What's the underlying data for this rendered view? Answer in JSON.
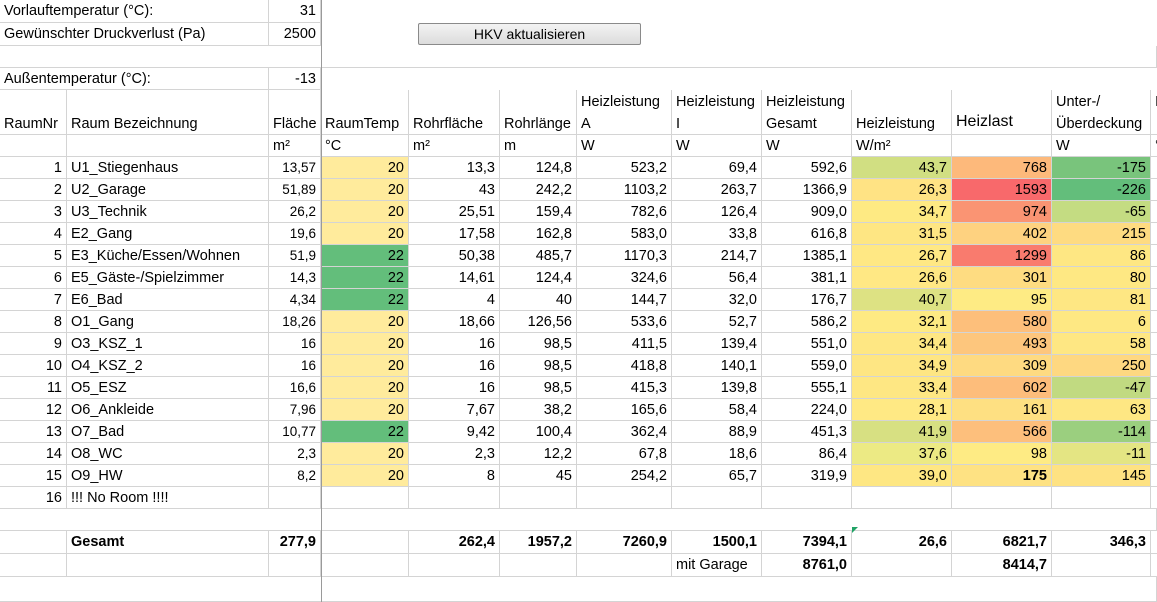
{
  "params": {
    "vorlauf_label": "Vorlauftemperatur (°C):",
    "vorlauf_value": "31",
    "druck_label": "Gewünschter Druckverlust (Pa)",
    "druck_value": "2500",
    "aussen_label": "Außentemperatur (°C):",
    "aussen_value": "-13"
  },
  "button": {
    "label": "HKV aktualisieren"
  },
  "headers": {
    "line1": [
      "",
      "",
      "",
      "",
      "",
      "",
      "Heizleistung",
      "Heizleistung",
      "Heizleistung",
      "",
      "",
      "Unter-/",
      "I"
    ],
    "line2": [
      "RaumNr",
      "Raum Bezeichnung",
      "Fläche",
      "RaumTemp",
      "Rohrfläche",
      "Rohrlänge",
      "A",
      "I",
      "Gesamt",
      "Heizleistung",
      "Heizlast",
      "Überdeckung",
      ""
    ],
    "units": [
      "",
      "",
      "m²",
      "°C",
      "m²",
      "m",
      "W",
      "W",
      "W",
      "W/m²",
      "",
      "W",
      "°"
    ]
  },
  "rows": [
    [
      "1",
      "U1_Stiegenhaus",
      "13,57",
      "20",
      "13,3",
      "124,8",
      "523,2",
      "69,4",
      "592,6",
      "43,7",
      "768",
      "-175"
    ],
    [
      "2",
      "U2_Garage",
      "51,89",
      "20",
      "43",
      "242,2",
      "1103,2",
      "263,7",
      "1366,9",
      "26,3",
      "1593",
      "-226"
    ],
    [
      "3",
      "U3_Technik",
      "26,2",
      "20",
      "25,51",
      "159,4",
      "782,6",
      "126,4",
      "909,0",
      "34,7",
      "974",
      "-65"
    ],
    [
      "4",
      "E2_Gang",
      "19,6",
      "20",
      "17,58",
      "162,8",
      "583,0",
      "33,8",
      "616,8",
      "31,5",
      "402",
      "215"
    ],
    [
      "5",
      "E3_Küche/Essen/Wohnen",
      "51,9",
      "22",
      "50,38",
      "485,7",
      "1170,3",
      "214,7",
      "1385,1",
      "26,7",
      "1299",
      "86"
    ],
    [
      "6",
      "E5_Gäste-/Spielzimmer",
      "14,3",
      "22",
      "14,61",
      "124,4",
      "324,6",
      "56,4",
      "381,1",
      "26,6",
      "301",
      "80"
    ],
    [
      "7",
      "E6_Bad",
      "4,34",
      "22",
      "4",
      "40",
      "144,7",
      "32,0",
      "176,7",
      "40,7",
      "95",
      "81"
    ],
    [
      "8",
      "O1_Gang",
      "18,26",
      "20",
      "18,66",
      "126,56",
      "533,6",
      "52,7",
      "586,2",
      "32,1",
      "580",
      "6"
    ],
    [
      "9",
      "O3_KSZ_1",
      "16",
      "20",
      "16",
      "98,5",
      "411,5",
      "139,4",
      "551,0",
      "34,4",
      "493",
      "58"
    ],
    [
      "10",
      "O4_KSZ_2",
      "16",
      "20",
      "16",
      "98,5",
      "418,8",
      "140,1",
      "559,0",
      "34,9",
      "309",
      "250"
    ],
    [
      "11",
      "O5_ESZ",
      "16,6",
      "20",
      "16",
      "98,5",
      "415,3",
      "139,8",
      "555,1",
      "33,4",
      "602",
      "-47"
    ],
    [
      "12",
      "O6_Ankleide",
      "7,96",
      "20",
      "7,67",
      "38,2",
      "165,6",
      "58,4",
      "224,0",
      "28,1",
      "161",
      "63"
    ],
    [
      "13",
      "O7_Bad",
      "10,77",
      "22",
      "9,42",
      "100,4",
      "362,4",
      "88,9",
      "451,3",
      "41,9",
      "566",
      "-114"
    ],
    [
      "14",
      "O8_WC",
      "2,3",
      "20",
      "2,3",
      "12,2",
      "67,8",
      "18,6",
      "86,4",
      "37,6",
      "98",
      "-11"
    ],
    [
      "15",
      "O9_HW",
      "8,2",
      "20",
      "8",
      "45",
      "254,2",
      "65,7",
      "319,9",
      "39,0",
      "175",
      "145"
    ],
    [
      "16",
      "!!! No Room !!!!",
      "",
      "",
      "",
      "",
      "",
      "",
      "",
      "",
      "",
      ""
    ]
  ],
  "totals": [
    "",
    "Gesamt",
    "277,9",
    "",
    "262,4",
    "1957,2",
    "7260,9",
    "1500,1",
    "7394,1",
    "26,6",
    "6821,7",
    "346,3"
  ],
  "garage": {
    "label": "mit Garage",
    "gesamt": "8761,0",
    "heizlast": "8414,7"
  },
  "colors": {
    "temp20": "#ffeb9c",
    "temp22": "#63be7b",
    "wm2": [
      "#d1df82",
      "#ffe384",
      "#feea83",
      "#fee683",
      "#ffe884",
      "#ffe884",
      "#dde283",
      "#feea83",
      "#fee783",
      "#fee683",
      "#fee783",
      "#ffe984",
      "#d7e082",
      "#ecea84",
      "#fee783"
    ],
    "heizlast": [
      "#fdb97b",
      "#f8696b",
      "#fa9473",
      "#fed280",
      "#f97b6e",
      "#fedc81",
      "#feeb84",
      "#fdbf7b",
      "#fdc67d",
      "#feda81",
      "#fdbd7b",
      "#fee082",
      "#fdbf7c",
      "#feeb84",
      "#fee283"
    ],
    "deckung": [
      "#79c47c",
      "#63be7b",
      "#c4dc82",
      "#fedb81",
      "#fee783",
      "#fee883",
      "#fee783",
      "#fee883",
      "#fee783",
      "#fed881",
      "#c1da81",
      "#fee783",
      "#9bcf7f",
      "#e4e583",
      "#fee282"
    ]
  }
}
